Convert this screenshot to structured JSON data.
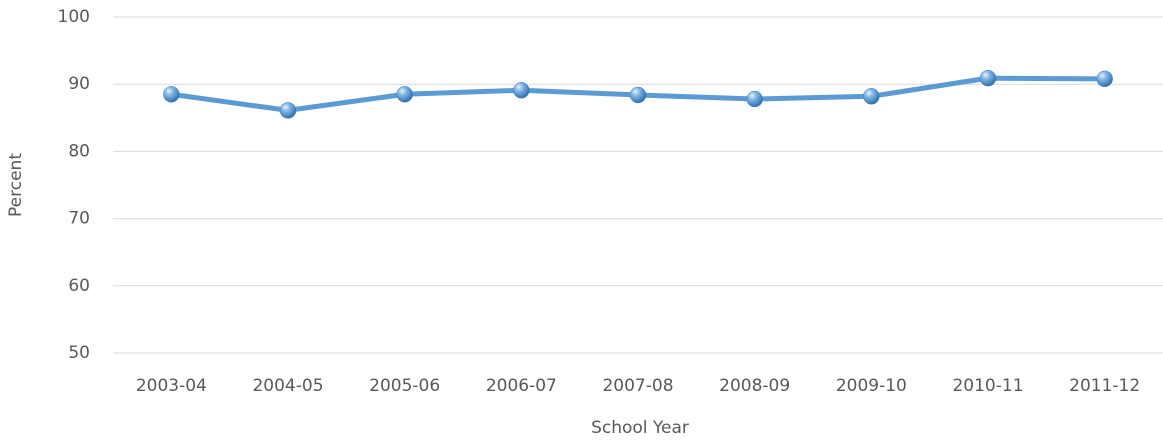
{
  "chart_data": {
    "type": "line",
    "x_label": "School Year",
    "y_label": "Percent",
    "categories": [
      "2003-04",
      "2004-05",
      "2005-06",
      "2006-07",
      "2007-08",
      "2008-09",
      "2009-10",
      "2010-11",
      "2011-12"
    ],
    "values": [
      88.5,
      86.1,
      88.5,
      89.1,
      88.4,
      87.8,
      88.2,
      90.9,
      90.8
    ],
    "color": "#5b9bd5",
    "ylim": [
      50,
      100
    ],
    "yticks": [
      50,
      60,
      70,
      80,
      90,
      100
    ],
    "grid": true
  }
}
